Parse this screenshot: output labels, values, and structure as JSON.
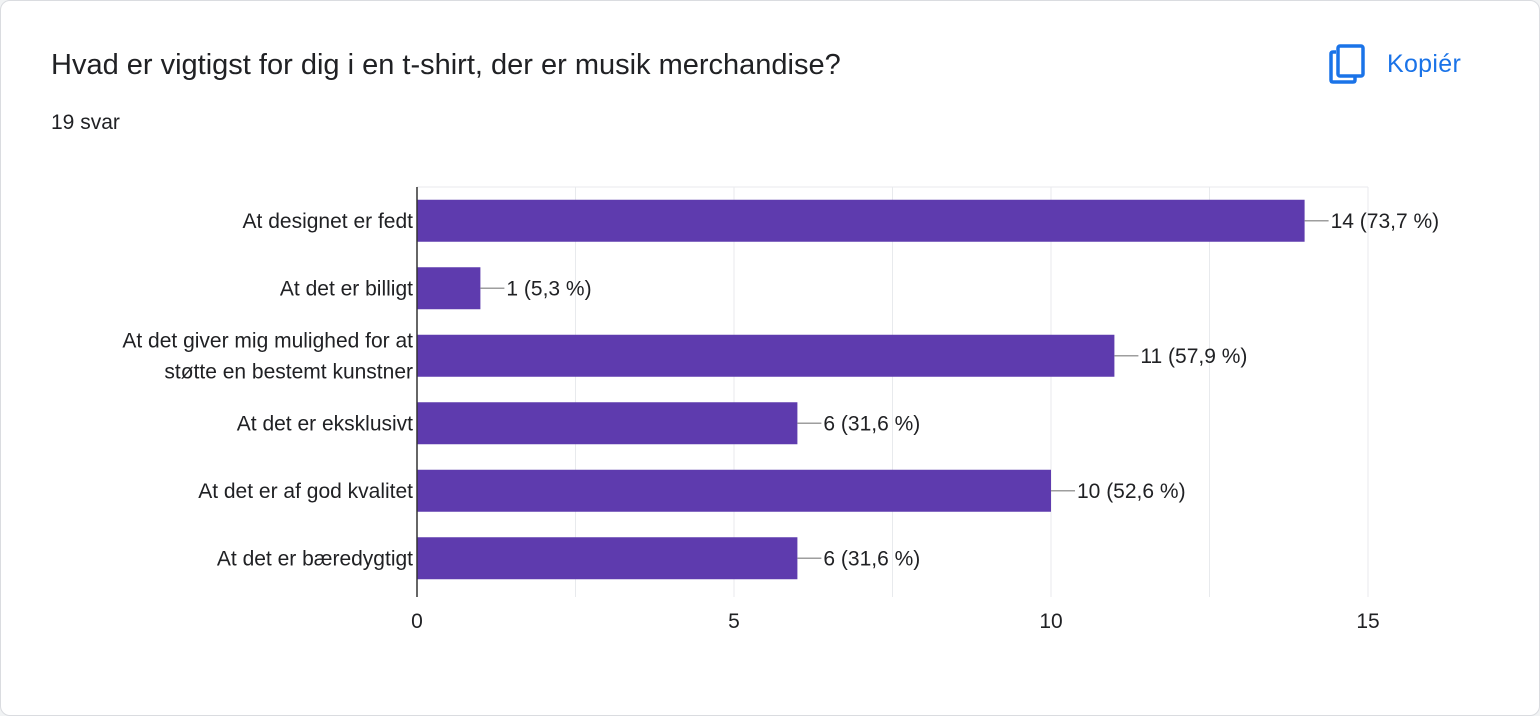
{
  "card": {
    "title": "Hvad er vigtigst for dig i en t-shirt, der er musik merchandise?",
    "response_count": "19 svar",
    "copy_label": "Kopiér",
    "copy_icon": "copy-icon"
  },
  "colors": {
    "bar": "#5e3bae",
    "accent": "#1a73e8",
    "text": "#202124",
    "grid": "#e8eaed",
    "axis": "#333333",
    "leader": "#9e9e9e"
  },
  "chart_data": {
    "type": "bar",
    "orientation": "horizontal",
    "categories": [
      [
        "At designet er fedt"
      ],
      [
        "At det er billigt"
      ],
      [
        "At det giver mig mulighed for at",
        "støtte en bestemt kunstner"
      ],
      [
        "At det er eksklusivt"
      ],
      [
        "At det er af god kvalitet"
      ],
      [
        "At det er bæredygtigt"
      ]
    ],
    "values": [
      14,
      1,
      11,
      6,
      10,
      6
    ],
    "value_labels": [
      "14 (73,7 %)",
      "1 (5,3 %)",
      "11 (57,9 %)",
      "6 (31,6 %)",
      "10 (52,6 %)",
      "6 (31,6 %)"
    ],
    "xlim": [
      0,
      15
    ],
    "xticks": [
      0,
      5,
      10,
      15
    ],
    "minor_grid_step": 2.5,
    "grid": true,
    "title": "",
    "xlabel": "",
    "ylabel": ""
  }
}
